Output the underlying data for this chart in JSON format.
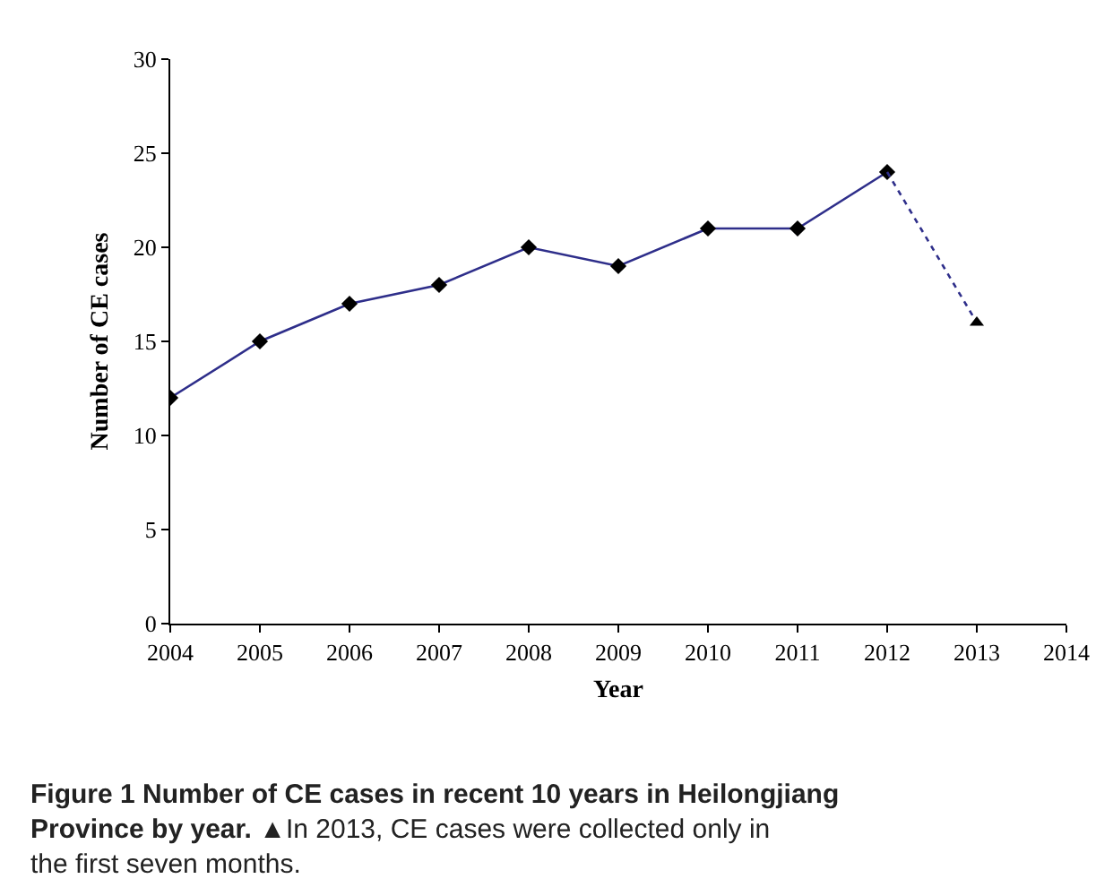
{
  "chart_data": {
    "type": "line",
    "title": "Figure 1 Number of CE cases in recent 10 years in Heilongjiang Province by year.",
    "xlabel": "Year",
    "ylabel": "Number of CE cases",
    "annotations": [
      "▲In 2013, CE cases were collected only in the first seven months."
    ],
    "series": [
      {
        "x": [
          2004,
          2005,
          2006,
          2007,
          2008,
          2009,
          2010,
          2011,
          2012
        ],
        "values": [
          12,
          15,
          17,
          18,
          20,
          19,
          21,
          21,
          24
        ],
        "color": "#2e2e8a",
        "marker": "diamond",
        "line_style": "solid"
      },
      {
        "x": [
          2012,
          2013
        ],
        "values": [
          24,
          16
        ],
        "color": "#2e2e8a",
        "marker": [
          "none",
          "triangle"
        ],
        "line_style": "dotted"
      }
    ],
    "xlim": [
      2004,
      2014
    ],
    "xticks": [
      2004,
      2005,
      2006,
      2007,
      2008,
      2009,
      2010,
      2011,
      2012,
      2013,
      2014
    ],
    "ylim": [
      0,
      30
    ],
    "yticks": [
      0,
      5,
      10,
      15,
      20,
      25,
      30
    ]
  }
}
